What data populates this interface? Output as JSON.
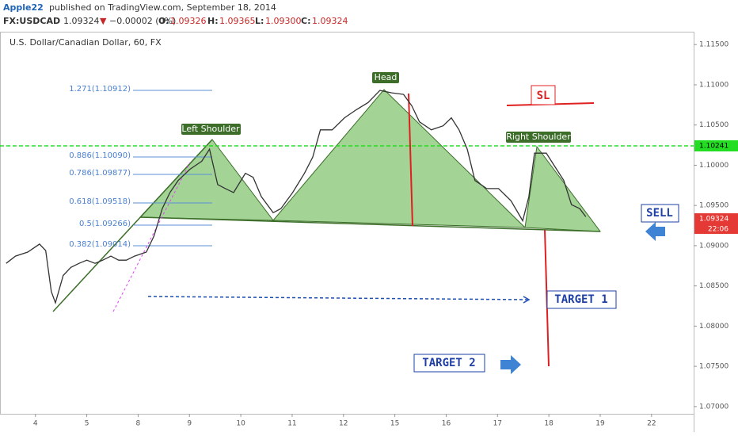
{
  "header": {
    "author": "Apple22",
    "published": "published on TradingView.com, September 18, 2014",
    "symbol": "FX:USDCAD",
    "last": "1.09324",
    "change_arrow": "▼",
    "change": "−0.00002 (0%)",
    "o_label": "O:",
    "o": "1.09326",
    "h_label": "H:",
    "h": "1.09365",
    "l_label": "L:",
    "l": "1.09300",
    "c_label": "C:",
    "c": "1.09324"
  },
  "chart_data": {
    "type": "line",
    "title": "U.S. Dollar/Canadian Dollar, 60, FX",
    "color": "#333333",
    "x": [
      -0.57,
      -0.39,
      -0.15,
      0.08,
      0.2,
      0.31,
      0.39,
      0.54,
      0.69,
      0.85,
      1.0,
      1.16,
      1.31,
      1.47,
      1.62,
      1.77,
      1.93,
      2.16,
      2.31,
      2.47,
      2.62,
      2.78,
      3.01,
      3.24,
      3.39,
      3.55,
      3.7,
      3.86,
      4.09,
      4.24,
      4.4,
      4.63,
      4.78,
      5.01,
      5.24,
      5.4,
      5.55,
      5.78,
      6.02,
      6.25,
      6.48,
      6.71,
      6.94,
      7.17,
      7.33,
      7.48,
      7.71,
      7.94,
      8.1,
      8.25,
      8.41,
      8.56,
      8.79,
      9.02,
      9.26,
      9.49,
      9.61,
      9.72,
      9.95,
      10.1,
      10.29,
      10.44,
      10.6,
      10.72
    ],
    "values": [
      1.0878,
      1.0887,
      1.0892,
      1.0902,
      1.0894,
      1.0843,
      1.0829,
      1.0863,
      1.0873,
      1.0878,
      1.0882,
      1.0878,
      1.0882,
      1.0887,
      1.0882,
      1.0882,
      1.0887,
      1.0892,
      1.0912,
      1.0946,
      1.0966,
      1.0981,
      1.0995,
      1.1005,
      1.102,
      1.0976,
      1.0971,
      1.0966,
      1.099,
      1.0985,
      1.0961,
      1.0941,
      1.0946,
      1.0966,
      1.099,
      1.101,
      1.1044,
      1.1044,
      1.1059,
      1.1069,
      1.1078,
      1.1093,
      1.109,
      1.1088,
      1.1074,
      1.1054,
      1.1044,
      1.1049,
      1.1059,
      1.1044,
      1.102,
      1.0981,
      1.0971,
      1.0971,
      1.0956,
      1.0931,
      1.0961,
      1.1015,
      1.1015,
      1.1,
      1.0981,
      1.0951,
      1.0946,
      1.0936
    ],
    "xlim": [
      -0.69,
      12.82
    ],
    "xticks": [
      {
        "value": 0,
        "label": "4"
      },
      {
        "value": 1,
        "label": "5"
      },
      {
        "value": 2,
        "label": "8"
      },
      {
        "value": 3,
        "label": "9"
      },
      {
        "value": 4,
        "label": "10"
      },
      {
        "value": 5,
        "label": "11"
      },
      {
        "value": 6,
        "label": "12"
      },
      {
        "value": 7,
        "label": "15"
      },
      {
        "value": 8,
        "label": "16"
      },
      {
        "value": 9,
        "label": "17"
      },
      {
        "value": 10,
        "label": "18"
      },
      {
        "value": 11,
        "label": "19"
      },
      {
        "value": 12,
        "label": "22"
      }
    ],
    "ylim": [
      1.0691,
      1.1166
    ],
    "yticks": [
      {
        "value": 1.115,
        "label": "1.11500"
      },
      {
        "value": 1.11,
        "label": "1.11000"
      },
      {
        "value": 1.105,
        "label": "1.10500"
      },
      {
        "value": 1.1,
        "label": "1.10000"
      },
      {
        "value": 1.095,
        "label": "1.09500"
      },
      {
        "value": 1.09,
        "label": "1.09000"
      },
      {
        "value": 1.085,
        "label": "1.08500"
      },
      {
        "value": 1.08,
        "label": "1.08000"
      },
      {
        "value": 1.075,
        "label": "1.07500"
      },
      {
        "value": 1.07,
        "label": "1.07000"
      }
    ],
    "hline": {
      "value": 1.10241,
      "label": "1.10241",
      "color": "#22dd22"
    },
    "last_price": {
      "value": 1.09324,
      "label": "1.09324",
      "time": "22:06",
      "color": "#e53935"
    },
    "fib_labels": [
      "1.271(1.10912)",
      "0.886(1.10090)",
      "0.786(1.09877)",
      "0.618(1.09518)",
      "0.5(1.09266)",
      "0.382(1.09014)"
    ],
    "annotations": {
      "left_shoulder": "Left Shoulder",
      "head": "Head",
      "right_shoulder": "Right Shoulder",
      "sl": "SL",
      "sell": "SELL",
      "target1": "TARGET 1",
      "target2": "TARGET 2"
    }
  }
}
